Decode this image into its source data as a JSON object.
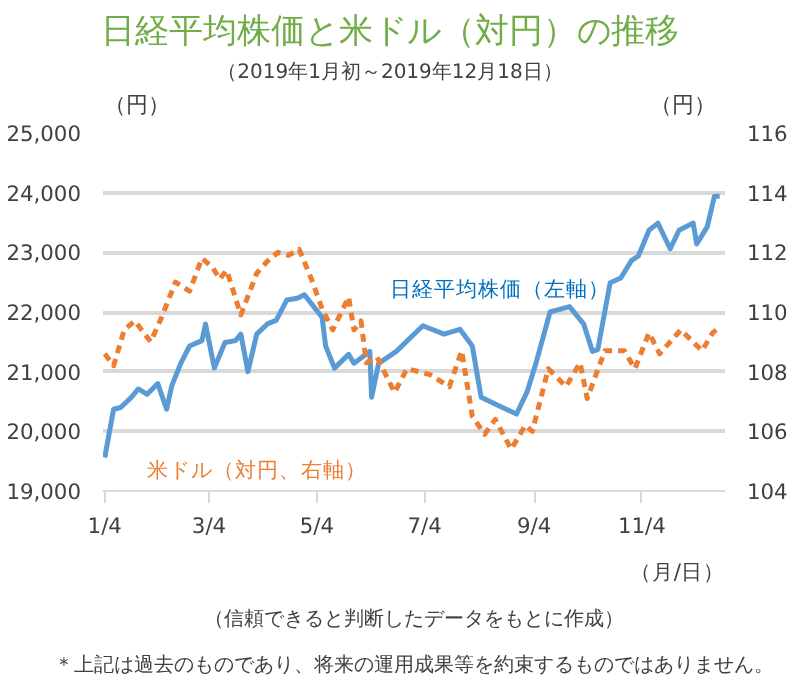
{
  "chart_data": {
    "type": "line",
    "title": "日経平均株価と米ドル（対円）の推移",
    "subtitle": "（2019年1月初～2019年12月18日）",
    "ylabel": "（円）",
    "y2label": "（円）",
    "xlabel": "（月/日）",
    "xlim": [
      "2019-01-03",
      "2019-12-21"
    ],
    "xticks": [
      {
        "value": "2019-01-04",
        "label": "1/4"
      },
      {
        "value": "2019-03-04",
        "label": "3/4"
      },
      {
        "value": "2019-05-04",
        "label": "5/4"
      },
      {
        "value": "2019-07-04",
        "label": "7/4"
      },
      {
        "value": "2019-09-04",
        "label": "9/4"
      },
      {
        "value": "2019-11-04",
        "label": "11/4"
      }
    ],
    "ylim": [
      19000,
      25000
    ],
    "yticks": [
      {
        "value": 19000,
        "label": "19,000"
      },
      {
        "value": 20000,
        "label": "20,000"
      },
      {
        "value": 21000,
        "label": "21,000"
      },
      {
        "value": 22000,
        "label": "22,000"
      },
      {
        "value": 23000,
        "label": "23,000"
      },
      {
        "value": 24000,
        "label": "24,000"
      },
      {
        "value": 25000,
        "label": "25,000"
      }
    ],
    "y2lim": [
      104,
      116
    ],
    "y2ticks": [
      104,
      106,
      108,
      110,
      112,
      114,
      116
    ],
    "grid": "y",
    "marker": "none",
    "series": [
      {
        "name": "日経平均株価（左軸）",
        "color": "#5b9bd5",
        "line_style": "solid",
        "x": [
          "2019-01-04",
          "2019-01-09",
          "2019-01-13",
          "2019-01-19",
          "2019-01-23",
          "2019-01-28",
          "2019-02-03",
          "2019-02-08",
          "2019-02-11",
          "2019-02-16",
          "2019-02-21",
          "2019-02-28",
          "2019-03-02",
          "2019-03-07",
          "2019-03-13",
          "2019-03-19",
          "2019-03-22",
          "2019-03-26",
          "2019-03-31",
          "2019-04-06",
          "2019-04-11",
          "2019-04-17",
          "2019-04-23",
          "2019-04-27",
          "2019-05-07",
          "2019-05-09",
          "2019-05-14",
          "2019-05-22",
          "2019-05-25",
          "2019-06-03",
          "2019-06-04",
          "2019-06-08",
          "2019-06-18",
          "2019-07-03",
          "2019-07-15",
          "2019-07-24",
          "2019-07-31",
          "2019-08-05",
          "2019-08-15",
          "2019-08-25",
          "2019-08-31",
          "2019-09-05",
          "2019-09-13",
          "2019-09-24",
          "2019-10-02",
          "2019-10-07",
          "2019-10-10",
          "2019-10-17",
          "2019-10-23",
          "2019-10-29",
          "2019-11-02",
          "2019-11-08",
          "2019-11-13",
          "2019-11-20",
          "2019-11-25",
          "2019-12-03",
          "2019-12-05",
          "2019-12-11",
          "2019-12-15",
          "2019-12-18"
        ],
        "values": [
          19560,
          20370,
          20400,
          20570,
          20710,
          20620,
          20800,
          20370,
          20770,
          21140,
          21430,
          21520,
          21800,
          21060,
          21490,
          21520,
          21630,
          21000,
          21630,
          21800,
          21860,
          22200,
          22230,
          22290,
          21910,
          21430,
          21060,
          21290,
          21140,
          21340,
          20570,
          21140,
          21340,
          21770,
          21630,
          21710,
          21430,
          20570,
          20430,
          20290,
          20660,
          21140,
          22000,
          22090,
          21800,
          21340,
          21370,
          22490,
          22570,
          22860,
          22940,
          23370,
          23490,
          23060,
          23370,
          23490,
          23140,
          23430,
          23940,
          23940
        ]
      },
      {
        "name": "米ドル（対円、右軸）",
        "color": "#ed7d31",
        "line_style": "dashed",
        "axis": "y2",
        "x": [
          "2019-01-04",
          "2019-01-09",
          "2019-01-15",
          "2019-01-21",
          "2019-01-30",
          "2019-02-05",
          "2019-02-13",
          "2019-02-21",
          "2019-02-28",
          "2019-03-06",
          "2019-03-10",
          "2019-03-14",
          "2019-03-22",
          "2019-03-31",
          "2019-04-06",
          "2019-04-12",
          "2019-04-18",
          "2019-04-24",
          "2019-05-01",
          "2019-05-07",
          "2019-05-13",
          "2019-05-22",
          "2019-05-25",
          "2019-05-29",
          "2019-06-01",
          "2019-06-07",
          "2019-06-17",
          "2019-06-24",
          "2019-07-07",
          "2019-07-18",
          "2019-07-25",
          "2019-07-31",
          "2019-08-07",
          "2019-08-13",
          "2019-08-22",
          "2019-08-30",
          "2019-09-03",
          "2019-09-12",
          "2019-09-22",
          "2019-09-30",
          "2019-10-04",
          "2019-10-14",
          "2019-10-25",
          "2019-10-31",
          "2019-11-08",
          "2019-11-14",
          "2019-11-26",
          "2019-12-08",
          "2019-12-14",
          "2019-12-18"
        ],
        "values": [
          108.6,
          108.2,
          109.4,
          109.7,
          109.0,
          109.8,
          111.0,
          110.7,
          111.8,
          111.5,
          111.1,
          111.4,
          109.9,
          111.3,
          111.7,
          112.0,
          111.9,
          112.1,
          111.1,
          110.1,
          109.4,
          110.5,
          109.4,
          109.7,
          108.3,
          108.5,
          107.3,
          108.1,
          107.9,
          107.5,
          108.7,
          106.5,
          105.9,
          106.4,
          105.4,
          106.2,
          106.0,
          108.1,
          107.5,
          108.3,
          107.1,
          108.7,
          108.7,
          108.1,
          109.3,
          108.6,
          109.4,
          108.7,
          109.3,
          109.5
        ]
      }
    ],
    "annotations": [
      "（信頼できると判断したデータをもとに作成）",
      "＊上記は過去のものであり、将来の運用成果等を約束するものではありません。"
    ]
  }
}
